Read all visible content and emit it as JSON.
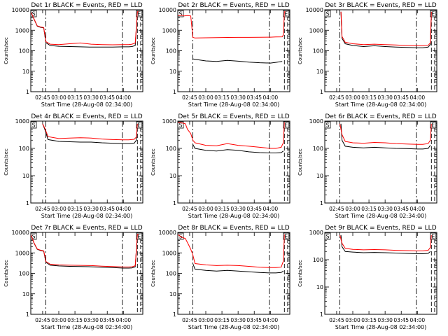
{
  "figure": {
    "ylabel": "Counts/sec",
    "xlabel": "Start Time (28-Aug-08 02:34:00)",
    "series_colors": {
      "events": "#000000",
      "lld": "#ff0000"
    },
    "background": "#ffffff",
    "marker_labels": {
      "s": "S",
      "e": "E"
    }
  },
  "chart_data": [
    {
      "type": "line",
      "title": "Det 1r BLACK = Events, RED = LLD",
      "y_scale": "log",
      "ylim": [
        1,
        10000
      ],
      "yticks": [
        "1",
        "10",
        "100",
        "1000",
        "10000"
      ],
      "xlim": [
        "02:34",
        "04:18"
      ],
      "xticks": [
        "02:45",
        "03:00",
        "03:15",
        "03:30",
        "03:45",
        "04:00"
      ],
      "markers": {
        "dashdot": [
          "02:48",
          "03:59"
        ],
        "dashed": [
          "04:13",
          "04:16"
        ],
        "S": "02:34",
        "E": "04:12"
      },
      "series": [
        {
          "key": "events",
          "x": [
            "02:34",
            "02:37",
            "02:40",
            "02:43",
            "02:46",
            "02:48",
            "02:52",
            "03:00",
            "03:10",
            "03:20",
            "03:30",
            "03:40",
            "03:50",
            "04:00",
            "04:05",
            "04:08",
            "04:11",
            "04:13",
            "04:14"
          ],
          "values": [
            8000,
            3500,
            1600,
            1400,
            1300,
            250,
            180,
            165,
            160,
            155,
            150,
            150,
            152,
            155,
            155,
            160,
            180,
            8000,
            8000
          ]
        },
        {
          "key": "lld",
          "x": [
            "02:34",
            "02:37",
            "02:40",
            "02:43",
            "02:46",
            "02:48",
            "02:52",
            "03:00",
            "03:10",
            "03:20",
            "03:30",
            "03:40",
            "03:50",
            "04:00",
            "04:05",
            "04:08",
            "04:11",
            "04:13",
            "04:14"
          ],
          "values": [
            8000,
            3600,
            1650,
            1450,
            1350,
            280,
            210,
            200,
            220,
            240,
            210,
            200,
            195,
            200,
            200,
            210,
            240,
            8000,
            8000
          ]
        }
      ]
    },
    {
      "type": "line",
      "title": "Det 2r BLACK = Events, RED = LLD",
      "y_scale": "log",
      "ylim": [
        1,
        10000
      ],
      "yticks": [
        "1",
        "10",
        "100",
        "1000",
        "10000"
      ],
      "xlim": [
        "02:34",
        "04:18"
      ],
      "xticks": [
        "02:45",
        "03:00",
        "03:15",
        "03:30",
        "03:45",
        "04:00"
      ],
      "markers": {
        "dashdot": [
          "02:48",
          "03:59"
        ],
        "dashed": [
          "04:13",
          "04:16"
        ],
        "S": "02:34",
        "E": "04:12"
      },
      "series": [
        {
          "key": "events",
          "x": [
            "02:48",
            "02:50",
            "03:00",
            "03:10",
            "03:20",
            "03:30",
            "03:40",
            "03:50",
            "04:00",
            "04:05",
            "04:11"
          ],
          "values": [
            40,
            38,
            32,
            30,
            34,
            31,
            28,
            26,
            25,
            27,
            30
          ]
        },
        {
          "key": "lld",
          "x": [
            "02:34",
            "02:37",
            "02:40",
            "02:43",
            "02:46",
            "02:48",
            "02:50",
            "03:00",
            "03:10",
            "03:20",
            "03:30",
            "03:40",
            "03:50",
            "04:00",
            "04:05",
            "04:11",
            "04:12",
            "04:13",
            "04:14"
          ],
          "values": [
            5000,
            5500,
            5000,
            5200,
            5000,
            450,
            420,
            430,
            440,
            445,
            450,
            450,
            455,
            460,
            470,
            480,
            600,
            8000,
            8000
          ]
        }
      ]
    },
    {
      "type": "line",
      "title": "Det 3r BLACK = Events, RED = LLD",
      "y_scale": "log",
      "ylim": [
        1,
        10000
      ],
      "yticks": [
        "1",
        "10",
        "100",
        "1000",
        "10000"
      ],
      "xlim": [
        "02:34",
        "04:18"
      ],
      "xticks": [
        "02:45",
        "03:00",
        "03:15",
        "03:30",
        "03:45",
        "04:00"
      ],
      "markers": {
        "dashdot": [
          "02:48",
          "03:59"
        ],
        "dashed": [
          "04:13",
          "04:16"
        ],
        "S": "02:34",
        "E": "04:12"
      },
      "series": [
        {
          "key": "events",
          "x": [
            "02:49",
            "02:50",
            "02:53",
            "03:00",
            "03:10",
            "03:20",
            "03:30",
            "03:40",
            "03:50",
            "04:00",
            "04:05",
            "04:10",
            "04:12",
            "04:13"
          ],
          "values": [
            8000,
            400,
            220,
            180,
            160,
            175,
            160,
            150,
            145,
            140,
            140,
            150,
            200,
            8000
          ]
        },
        {
          "key": "lld",
          "x": [
            "02:49",
            "02:50",
            "02:53",
            "03:00",
            "03:10",
            "03:20",
            "03:30",
            "03:40",
            "03:50",
            "04:00",
            "04:05",
            "04:10",
            "04:12",
            "04:13"
          ],
          "values": [
            8000,
            500,
            260,
            220,
            200,
            210,
            200,
            190,
            180,
            175,
            175,
            185,
            240,
            8000
          ]
        }
      ]
    },
    {
      "type": "line",
      "title": "Det 4r BLACK = Events, RED = LLD",
      "y_scale": "log",
      "ylim": [
        1,
        1000
      ],
      "yticks": [
        "1",
        "10",
        "100",
        "1000"
      ],
      "xlim": [
        "02:34",
        "04:18"
      ],
      "xticks": [
        "02:45",
        "03:00",
        "03:15",
        "03:30",
        "03:45",
        "04:00"
      ],
      "markers": {
        "dashdot": [
          "02:48",
          "03:59"
        ],
        "dashed": [
          "04:13",
          "04:16"
        ],
        "S": "02:34",
        "E": "04:12"
      },
      "series": [
        {
          "key": "events",
          "x": [
            "02:45",
            "02:47",
            "02:50",
            "03:00",
            "03:10",
            "03:20",
            "03:30",
            "03:40",
            "03:50",
            "04:00",
            "04:05",
            "04:10",
            "04:12",
            "04:13"
          ],
          "values": [
            800,
            500,
            210,
            180,
            175,
            170,
            170,
            160,
            155,
            150,
            150,
            155,
            200,
            800
          ]
        },
        {
          "key": "lld",
          "x": [
            "02:45",
            "02:47",
            "02:50",
            "03:00",
            "03:10",
            "03:20",
            "03:30",
            "03:40",
            "03:50",
            "04:00",
            "04:05",
            "04:10",
            "04:12",
            "04:13"
          ],
          "values": [
            800,
            550,
            270,
            230,
            240,
            245,
            240,
            220,
            210,
            205,
            205,
            215,
            260,
            800
          ]
        }
      ]
    },
    {
      "type": "line",
      "title": "Det 5r BLACK = Events, RED = LLD",
      "y_scale": "log",
      "ylim": [
        1,
        1000
      ],
      "yticks": [
        "1",
        "10",
        "100",
        "1000"
      ],
      "xlim": [
        "02:34",
        "04:18"
      ],
      "xticks": [
        "02:45",
        "03:00",
        "03:15",
        "03:30",
        "03:45",
        "04:00"
      ],
      "markers": {
        "dashdot": [
          "02:48",
          "03:59"
        ],
        "dashed": [
          "04:13",
          "04:16"
        ],
        "S": "02:34",
        "E": "04:12"
      },
      "series": [
        {
          "key": "events",
          "x": [
            "02:48",
            "02:50",
            "03:00",
            "03:10",
            "03:20",
            "03:30",
            "03:40",
            "03:50",
            "04:00",
            "04:05",
            "04:10",
            "04:12"
          ],
          "values": [
            140,
            100,
            85,
            80,
            90,
            85,
            75,
            70,
            68,
            68,
            70,
            80
          ]
        },
        {
          "key": "lld",
          "x": [
            "02:34",
            "02:38",
            "02:41",
            "02:43",
            "02:46",
            "02:48",
            "02:50",
            "03:00",
            "03:10",
            "03:20",
            "03:30",
            "03:40",
            "03:50",
            "04:00",
            "04:05",
            "04:10",
            "04:12",
            "04:13"
          ],
          "values": [
            900,
            850,
            800,
            500,
            350,
            200,
            160,
            130,
            125,
            150,
            130,
            120,
            110,
            100,
            100,
            110,
            160,
            900
          ]
        }
      ]
    },
    {
      "type": "line",
      "title": "Det 6r BLACK = Events, RED = LLD",
      "y_scale": "log",
      "ylim": [
        1,
        1000
      ],
      "yticks": [
        "1",
        "10",
        "100",
        "1000"
      ],
      "xlim": [
        "02:34",
        "04:18"
      ],
      "xticks": [
        "02:45",
        "03:00",
        "03:15",
        "03:30",
        "03:45",
        "04:00"
      ],
      "markers": {
        "dashdot": [
          "02:48",
          "03:59"
        ],
        "dashed": [
          "04:13",
          "04:16"
        ],
        "S": "02:34",
        "E": "04:12"
      },
      "series": [
        {
          "key": "events",
          "x": [
            "02:49",
            "02:50",
            "02:53",
            "03:00",
            "03:10",
            "03:20",
            "03:30",
            "03:40",
            "03:50",
            "04:00",
            "04:05",
            "04:10",
            "04:12"
          ],
          "values": [
            800,
            200,
            120,
            110,
            105,
            110,
            105,
            100,
            98,
            95,
            95,
            100,
            130
          ]
        },
        {
          "key": "lld",
          "x": [
            "02:48",
            "02:50",
            "02:53",
            "03:00",
            "03:10",
            "03:20",
            "03:30",
            "03:40",
            "03:50",
            "04:00",
            "04:05",
            "04:10",
            "04:12",
            "04:13"
          ],
          "values": [
            800,
            320,
            180,
            160,
            155,
            165,
            160,
            150,
            145,
            140,
            140,
            150,
            200,
            800
          ]
        }
      ]
    },
    {
      "type": "line",
      "title": "Det 7r BLACK = Events, RED = LLD",
      "y_scale": "log",
      "ylim": [
        1,
        10000
      ],
      "yticks": [
        "1",
        "10",
        "100",
        "1000",
        "10000"
      ],
      "xlim": [
        "02:34",
        "04:18"
      ],
      "xticks": [
        "02:45",
        "03:00",
        "03:15",
        "03:30",
        "03:45",
        "04:00"
      ],
      "markers": {
        "dashdot": [
          "02:48",
          "03:59"
        ],
        "dashed": [
          "04:13",
          "04:16"
        ],
        "S": "02:34",
        "E": "04:12"
      },
      "series": [
        {
          "key": "events",
          "x": [
            "02:34",
            "02:37",
            "02:40",
            "02:43",
            "02:46",
            "02:48",
            "02:52",
            "03:00",
            "03:10",
            "03:20",
            "03:30",
            "03:40",
            "03:50",
            "04:00",
            "04:05",
            "04:08",
            "04:11",
            "04:13",
            "04:14"
          ],
          "values": [
            8000,
            3000,
            1500,
            1300,
            1200,
            350,
            250,
            230,
            220,
            215,
            210,
            200,
            190,
            180,
            180,
            185,
            210,
            8000,
            8000
          ]
        },
        {
          "key": "lld",
          "x": [
            "02:34",
            "02:37",
            "02:40",
            "02:43",
            "02:46",
            "02:48",
            "02:52",
            "03:00",
            "03:10",
            "03:20",
            "03:30",
            "03:40",
            "03:50",
            "04:00",
            "04:05",
            "04:08",
            "04:11",
            "04:13",
            "04:14"
          ],
          "values": [
            8000,
            3100,
            1550,
            1350,
            1250,
            380,
            280,
            260,
            250,
            245,
            240,
            225,
            215,
            205,
            205,
            210,
            235,
            8000,
            8000
          ]
        }
      ]
    },
    {
      "type": "line",
      "title": "Det 8r BLACK = Events, RED = LLD",
      "y_scale": "log",
      "ylim": [
        1,
        10000
      ],
      "yticks": [
        "1",
        "10",
        "100",
        "1000",
        "10000"
      ],
      "xlim": [
        "02:34",
        "04:18"
      ],
      "xticks": [
        "02:45",
        "03:00",
        "03:15",
        "03:30",
        "03:45",
        "04:00"
      ],
      "markers": {
        "dashdot": [
          "02:48",
          "03:59"
        ],
        "dashed": [
          "04:13",
          "04:16"
        ],
        "S": "02:34",
        "E": "04:12"
      },
      "series": [
        {
          "key": "events",
          "x": [
            "02:48",
            "02:50",
            "03:00",
            "03:10",
            "03:20",
            "03:30",
            "03:40",
            "03:50",
            "04:00",
            "04:05",
            "04:10",
            "04:12"
          ],
          "values": [
            300,
            160,
            140,
            130,
            140,
            130,
            120,
            110,
            105,
            105,
            110,
            130
          ]
        },
        {
          "key": "lld",
          "x": [
            "02:34",
            "02:37",
            "02:41",
            "02:44",
            "02:46",
            "02:48",
            "02:50",
            "03:00",
            "03:10",
            "03:20",
            "03:30",
            "03:40",
            "03:50",
            "04:00",
            "04:05",
            "04:10",
            "04:12",
            "04:13"
          ],
          "values": [
            8000,
            6000,
            5000,
            2500,
            1500,
            800,
            300,
            260,
            240,
            250,
            240,
            220,
            200,
            190,
            190,
            200,
            400,
            8000
          ]
        }
      ]
    },
    {
      "type": "line",
      "title": "Det 9r BLACK = Events, RED = LLD",
      "y_scale": "log",
      "ylim": [
        1,
        1000
      ],
      "yticks": [
        "1",
        "10",
        "100",
        "1000"
      ],
      "xlim": [
        "02:34",
        "04:18"
      ],
      "xticks": [
        "02:45",
        "03:00",
        "03:15",
        "03:30",
        "03:45",
        "04:00"
      ],
      "markers": {
        "dashdot": [
          "02:48",
          "03:59"
        ],
        "dashed": [
          "04:13",
          "04:16"
        ],
        "S": "02:34",
        "E": "04:12"
      },
      "series": [
        {
          "key": "events",
          "x": [
            "02:49",
            "02:50",
            "02:53",
            "03:00",
            "03:10",
            "03:20",
            "03:30",
            "03:40",
            "03:50",
            "04:00",
            "04:05",
            "04:10",
            "04:12"
          ],
          "values": [
            800,
            300,
            200,
            190,
            180,
            185,
            180,
            175,
            170,
            165,
            165,
            170,
            200
          ]
        },
        {
          "key": "lld",
          "x": [
            "02:48",
            "02:50",
            "02:53",
            "03:00",
            "03:10",
            "03:20",
            "03:30",
            "03:40",
            "03:50",
            "04:00",
            "04:05",
            "04:10",
            "04:12",
            "04:13"
          ],
          "values": [
            800,
            400,
            260,
            240,
            230,
            235,
            230,
            220,
            215,
            210,
            210,
            220,
            280,
            800
          ]
        }
      ]
    }
  ]
}
